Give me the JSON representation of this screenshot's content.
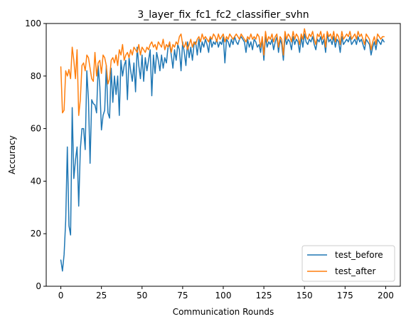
{
  "chart_data": {
    "type": "line",
    "title": "3_layer_fix_fc1_fc2_classifier_svhn",
    "xlabel": "Communication Rounds",
    "ylabel": "Accuracy",
    "xlim": [
      -9,
      209
    ],
    "ylim": [
      0,
      100
    ],
    "xticks": [
      0,
      25,
      50,
      75,
      100,
      125,
      150,
      175,
      200
    ],
    "yticks": [
      0,
      20,
      40,
      60,
      80,
      100
    ],
    "grid": false,
    "legend_position": "lower-right",
    "series": [
      {
        "name": "test_before",
        "color": "#1f77b4",
        "y": [
          10.0,
          5.8,
          12.0,
          25.0,
          53.0,
          23.0,
          19.5,
          68.0,
          41.0,
          48.0,
          53.0,
          30.5,
          52.0,
          60.0,
          60.0,
          52.0,
          82.0,
          71.0,
          46.8,
          71.0,
          69.5,
          69.0,
          66.0,
          84.0,
          76.0,
          59.5,
          65.0,
          67.0,
          84.0,
          66.0,
          64.0,
          83.0,
          70.0,
          80.0,
          73.0,
          80.0,
          65.0,
          86.0,
          80.0,
          84.0,
          86.0,
          71.0,
          87.0,
          82.0,
          78.0,
          85.0,
          74.0,
          91.0,
          84.0,
          79.0,
          88.0,
          78.0,
          87.0,
          82.0,
          86.0,
          90.0,
          72.5,
          88.0,
          81.0,
          89.0,
          86.0,
          82.0,
          88.0,
          83.0,
          87.0,
          85.0,
          91.0,
          92.0,
          88.0,
          83.0,
          90.0,
          86.0,
          92.0,
          90.0,
          82.0,
          93.0,
          89.0,
          84.0,
          93.0,
          87.0,
          91.0,
          86.0,
          92.0,
          93.0,
          88.0,
          94.0,
          89.0,
          93.0,
          91.0,
          94.0,
          92.0,
          89.0,
          95.0,
          91.0,
          93.0,
          92.0,
          94.0,
          91.0,
          93.0,
          92.0,
          95.0,
          85.0,
          94.0,
          93.0,
          91.0,
          94.0,
          92.0,
          95.0,
          93.0,
          92.0,
          94.0,
          95.0,
          94.0,
          93.0,
          89.0,
          94.0,
          91.0,
          93.0,
          90.0,
          94.0,
          93.0,
          91.0,
          92.0,
          89.0,
          94.0,
          86.0,
          95.0,
          91.0,
          93.0,
          92.0,
          94.0,
          90.0,
          93.0,
          95.0,
          89.0,
          94.0,
          92.0,
          86.0,
          95.0,
          92.0,
          94.0,
          93.0,
          90.0,
          95.0,
          92.0,
          94.0,
          93.0,
          89.0,
          95.0,
          91.0,
          96.0,
          93.0,
          92.0,
          94.0,
          93.0,
          95.0,
          92.0,
          90.0,
          94.0,
          93.0,
          95.0,
          92.0,
          94.0,
          89.0,
          96.0,
          93.0,
          94.0,
          92.0,
          95.0,
          91.0,
          94.0,
          93.0,
          89.0,
          95.0,
          92.0,
          93.0,
          94.0,
          93.0,
          95.0,
          92.0,
          93.0,
          94.0,
          92.0,
          95.0,
          93.0,
          94.0,
          92.0,
          90.0,
          94.0,
          93.0,
          92.0,
          88.0,
          91.0,
          93.0,
          90.0,
          94.0,
          93.0,
          92.0,
          94.0,
          93.0
        ]
      },
      {
        "name": "test_after",
        "color": "#ff7f0e",
        "y": [
          83.5,
          66.0,
          67.0,
          82.0,
          80.0,
          82.5,
          79.0,
          91.0,
          86.0,
          79.0,
          90.0,
          65.0,
          71.0,
          84.0,
          85.0,
          82.0,
          88.0,
          87.0,
          83.0,
          79.0,
          78.0,
          89.0,
          80.0,
          85.0,
          86.0,
          81.0,
          88.0,
          87.0,
          84.0,
          77.0,
          79.0,
          86.0,
          87.0,
          85.0,
          88.0,
          84.0,
          90.0,
          88.0,
          92.0,
          86.0,
          88.0,
          89.0,
          87.0,
          90.0,
          88.0,
          91.0,
          90.0,
          89.0,
          92.0,
          88.0,
          91.0,
          90.0,
          89.0,
          91.0,
          90.0,
          92.0,
          93.0,
          91.0,
          92.0,
          90.0,
          93.0,
          92.0,
          91.0,
          94.0,
          90.0,
          92.0,
          91.0,
          93.0,
          89.0,
          92.0,
          91.0,
          93.0,
          92.0,
          95.0,
          96.0,
          92.0,
          91.0,
          93.0,
          90.0,
          92.0,
          94.0,
          91.0,
          93.0,
          92.0,
          94.0,
          95.0,
          93.0,
          96.0,
          94.0,
          95.0,
          94.0,
          93.0,
          95.0,
          94.0,
          96.0,
          95.0,
          93.0,
          96.0,
          94.0,
          95.0,
          96.0,
          93.0,
          95.0,
          94.0,
          96.0,
          95.0,
          94.0,
          95.0,
          96.0,
          95.0,
          94.0,
          96.0,
          95.0,
          94.0,
          93.0,
          95.0,
          94.0,
          96.0,
          94.0,
          95.0,
          94.0,
          96.0,
          95.0,
          91.0,
          95.0,
          88.0,
          97.0,
          93.0,
          95.0,
          94.0,
          96.0,
          93.0,
          95.0,
          96.0,
          91.0,
          95.0,
          94.0,
          88.0,
          97.0,
          94.0,
          96.0,
          95.0,
          93.0,
          97.0,
          94.0,
          96.0,
          95.0,
          92.0,
          96.0,
          94.0,
          98.0,
          95.0,
          94.0,
          96.0,
          95.0,
          97.0,
          94.0,
          92.0,
          96.0,
          95.0,
          97.0,
          94.0,
          96.0,
          91.0,
          97.0,
          95.0,
          96.0,
          94.0,
          97.0,
          93.0,
          96.0,
          95.0,
          92.0,
          97.0,
          94.0,
          95.0,
          96.0,
          95.0,
          97.0,
          94.0,
          95.0,
          96.0,
          94.0,
          97.0,
          95.0,
          96.0,
          94.0,
          92.0,
          96.0,
          95.0,
          94.0,
          90.0,
          93.0,
          95.0,
          92.0,
          96.0,
          95.0,
          94.0,
          95.0,
          95.0
        ]
      }
    ]
  }
}
